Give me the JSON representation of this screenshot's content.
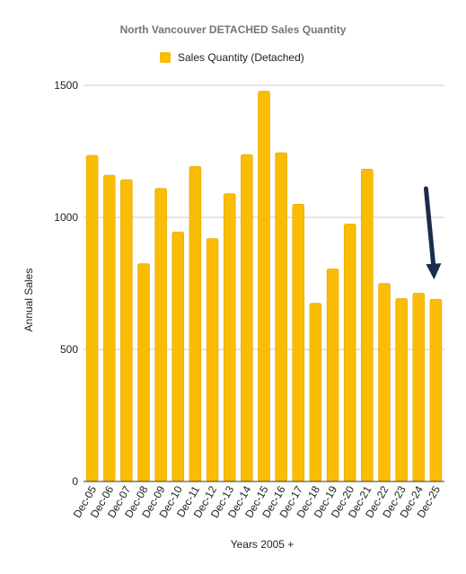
{
  "chart_data": {
    "type": "bar",
    "title": "North Vancouver DETACHED Sales Quantity",
    "xlabel": "Years 2005 +",
    "ylabel": "Annual Sales",
    "ylim": [
      0,
      1500
    ],
    "yticks": [
      "0",
      "500",
      "1000",
      "1500"
    ],
    "grid": true,
    "legend_position": "top",
    "categories": [
      "Dec-05",
      "Dec-06",
      "Dec-07",
      "Dec-08",
      "Dec-09",
      "Dec-10",
      "Dec-11",
      "Dec-12",
      "Dec-13",
      "Dec-14",
      "Dec-15",
      "Dec-16",
      "Dec-17",
      "Dec-18",
      "Dec-19",
      "Dec-20",
      "Dec-21",
      "Dec-22",
      "Dec-23",
      "Dec-24",
      "Dec-25"
    ],
    "series": [
      {
        "name": "Sales Quantity (Detached)",
        "color": "#FBBC04",
        "values": [
          1235,
          1160,
          1143,
          825,
          1110,
          945,
          1193,
          920,
          1090,
          1238,
          1478,
          1245,
          1050,
          675,
          805,
          975,
          1183,
          750,
          693,
          713,
          690
        ]
      }
    ],
    "annotation": {
      "type": "arrow",
      "target_category": "Dec-25",
      "color": "#1a2b4c"
    }
  }
}
